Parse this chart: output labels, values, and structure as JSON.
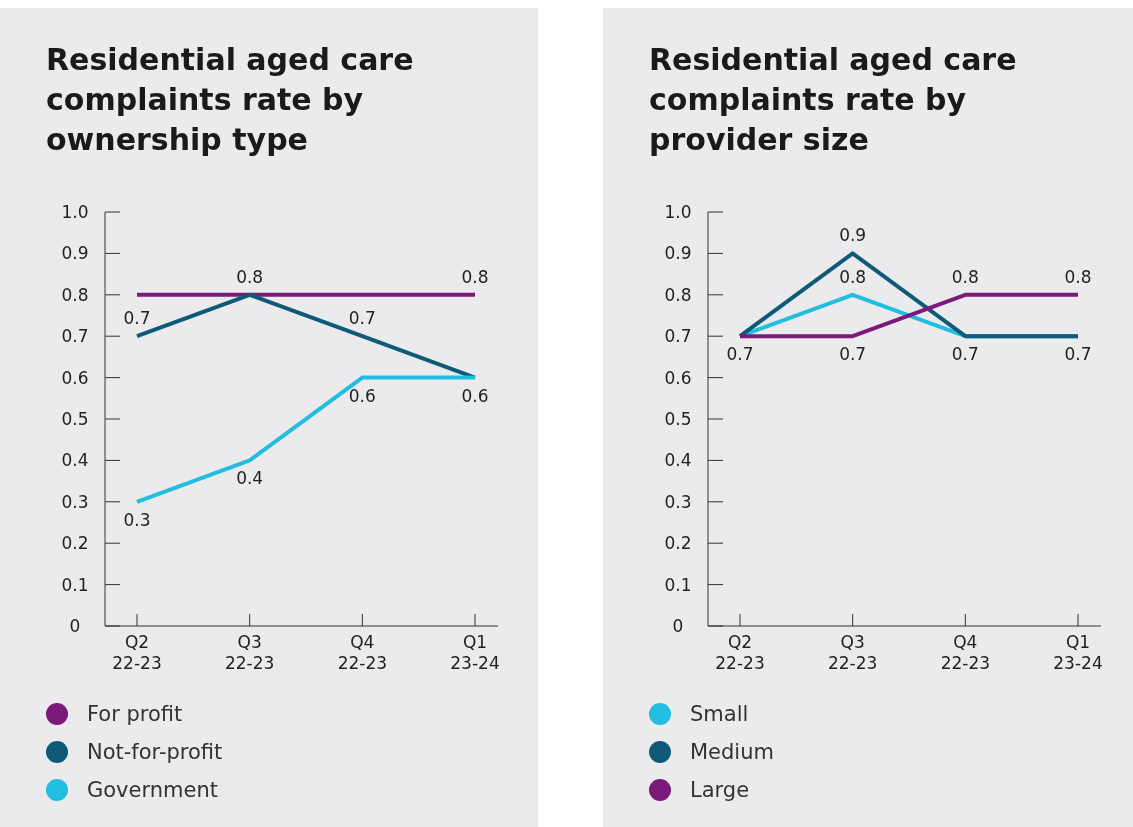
{
  "chart_data": [
    {
      "type": "line",
      "title": "Residential aged care complaints rate by ownership type",
      "categories": [
        "Q2\n22-23",
        "Q3\n22-23",
        "Q4\n22-23",
        "Q1\n23-24"
      ],
      "ylim": [
        0,
        1
      ],
      "yticks": [
        0,
        0.1,
        0.2,
        0.3,
        0.4,
        0.5,
        0.6,
        0.7,
        0.8,
        0.9,
        {
          "value": 1,
          "label": "1.0"
        }
      ],
      "legend": "bottom",
      "grid": false,
      "marker": "none",
      "line_style": "solid",
      "series": [
        {
          "name": "For profit",
          "color": "#7b1a7a",
          "values": [
            0.8,
            0.8,
            0.8,
            0.8
          ],
          "value_labels": [
            null,
            "0.8",
            null,
            "0.8"
          ]
        },
        {
          "name": "Not-for-profit",
          "color": "#0f5a78",
          "values": [
            0.7,
            0.8,
            0.7,
            0.6
          ],
          "value_labels": [
            "0.7",
            null,
            "0.7",
            null
          ]
        },
        {
          "name": "Government",
          "color": "#22bde0",
          "values": [
            0.3,
            0.4,
            0.6,
            0.6
          ],
          "value_labels": [
            "0.3",
            "0.4",
            "0.6",
            "0.6"
          ]
        }
      ]
    },
    {
      "type": "line",
      "title": "Residential aged care complaints rate by provider size",
      "categories": [
        "Q2\n22-23",
        "Q3\n22-23",
        "Q4\n22-23",
        "Q1\n23-24"
      ],
      "ylim": [
        0,
        1
      ],
      "yticks": [
        0,
        0.1,
        0.2,
        0.3,
        0.4,
        0.5,
        0.6,
        0.7,
        0.8,
        0.9,
        {
          "value": 1,
          "label": "1.0"
        }
      ],
      "legend": "bottom",
      "grid": false,
      "marker": "none",
      "line_style": "solid",
      "series": [
        {
          "name": "Small",
          "color": "#22bde0",
          "values": [
            0.7,
            0.8,
            0.7,
            0.7
          ],
          "value_labels": [
            "0.7",
            "0.8",
            "0.7",
            "0.7"
          ]
        },
        {
          "name": "Medium",
          "color": "#0f5a78",
          "values": [
            0.7,
            0.9,
            0.7,
            0.7
          ],
          "value_labels": [
            null,
            "0.9",
            null,
            null
          ]
        },
        {
          "name": "Large",
          "color": "#7b1a7a",
          "values": [
            0.7,
            0.7,
            0.8,
            0.8
          ],
          "value_labels": [
            null,
            "0.7",
            "0.8",
            "0.8"
          ]
        }
      ]
    }
  ]
}
